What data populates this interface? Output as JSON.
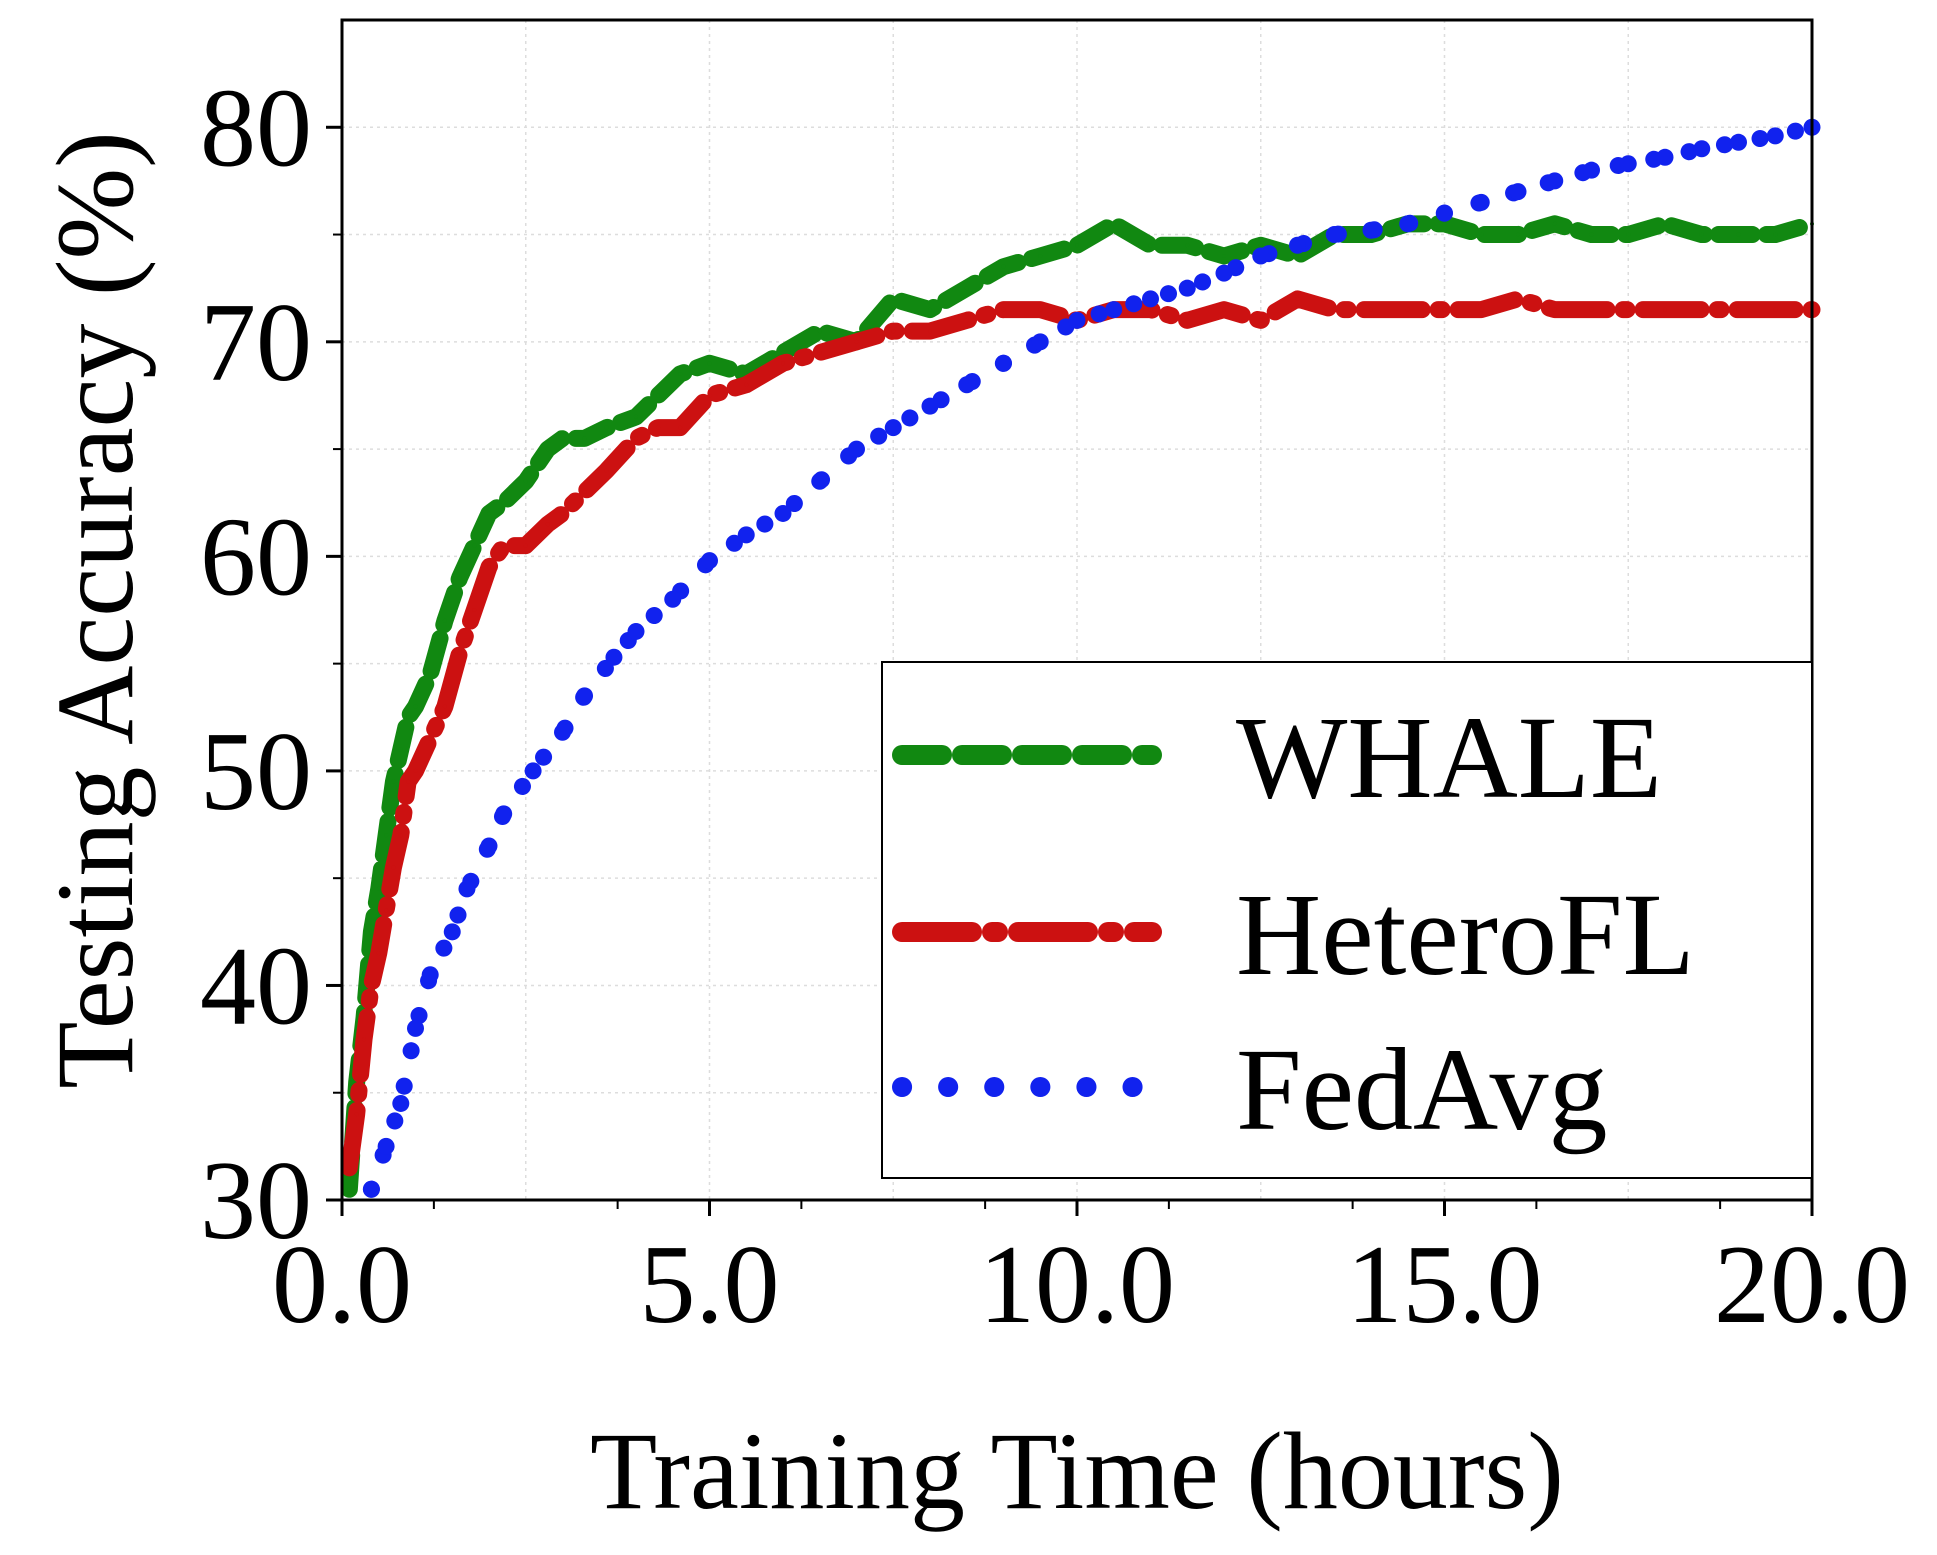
{
  "chart_data": {
    "type": "line",
    "title": "",
    "xlabel": "Training Time (hours)",
    "ylabel": "Testing Accuracy (%)",
    "xlim": [
      0,
      20
    ],
    "ylim": [
      30,
      85
    ],
    "xticks": [
      0,
      5,
      10,
      15,
      20
    ],
    "xtick_labels": [
      "0.0",
      "5.0",
      "10.0",
      "15.0",
      "20.0"
    ],
    "yticks": [
      30,
      40,
      50,
      60,
      70,
      80
    ],
    "ytick_labels": [
      "30",
      "40",
      "50",
      "60",
      "70",
      "80"
    ],
    "grid": true,
    "legend_position": "bottom-right",
    "series": [
      {
        "name": "WHALE",
        "color": "#118811",
        "style": "dashed",
        "x": [
          0.1,
          0.2,
          0.3,
          0.4,
          0.5,
          0.6,
          0.7,
          0.8,
          0.9,
          1.0,
          1.2,
          1.4,
          1.6,
          1.8,
          2.0,
          2.2,
          2.5,
          2.8,
          3.0,
          3.3,
          3.6,
          4.0,
          4.3,
          4.6,
          5.0,
          5.5,
          6.0,
          6.5,
          7.0,
          7.5,
          8.0,
          8.5,
          9.0,
          9.5,
          10.0,
          10.5,
          11.0,
          11.5,
          12.0,
          12.5,
          13.0,
          13.5,
          14.0,
          14.5,
          15.0,
          15.5,
          16.0,
          16.5,
          17.0,
          17.5,
          18.0,
          18.5,
          19.0,
          19.5,
          20.0
        ],
        "y": [
          30.5,
          35.5,
          38.5,
          42.5,
          44.5,
          47.0,
          49.5,
          51.0,
          52.5,
          53.0,
          54.5,
          57.0,
          59.0,
          60.5,
          62.0,
          62.5,
          63.5,
          65.0,
          65.5,
          65.5,
          66.0,
          66.5,
          67.5,
          68.5,
          69.0,
          68.5,
          69.5,
          70.5,
          70.0,
          72.0,
          71.5,
          72.5,
          73.5,
          74.0,
          74.5,
          75.5,
          74.5,
          74.5,
          74.0,
          74.5,
          74.0,
          75.0,
          75.0,
          75.5,
          75.5,
          75.0,
          75.0,
          75.5,
          75.0,
          75.0,
          75.5,
          75.0,
          75.0,
          75.0,
          75.5
        ]
      },
      {
        "name": "HeteroFL",
        "color": "#cc1111",
        "style": "dash-dot",
        "x": [
          0.1,
          0.2,
          0.3,
          0.4,
          0.5,
          0.6,
          0.7,
          0.8,
          0.9,
          1.0,
          1.2,
          1.4,
          1.6,
          1.8,
          2.0,
          2.2,
          2.5,
          2.8,
          3.0,
          3.3,
          3.6,
          4.0,
          4.3,
          4.6,
          5.0,
          5.5,
          6.0,
          6.5,
          7.0,
          7.5,
          8.0,
          8.5,
          9.0,
          9.5,
          10.0,
          10.5,
          11.0,
          11.5,
          12.0,
          12.5,
          13.0,
          13.5,
          14.0,
          14.5,
          15.0,
          15.5,
          16.0,
          16.5,
          17.0,
          17.5,
          18.0,
          18.5,
          19.0,
          19.5,
          20.0
        ],
        "y": [
          31.5,
          34.0,
          37.5,
          40.0,
          41.5,
          43.5,
          45.5,
          47.0,
          49.5,
          50.0,
          51.5,
          53.0,
          55.5,
          57.5,
          59.5,
          60.5,
          60.5,
          61.5,
          62.0,
          63.0,
          64.0,
          65.5,
          66.0,
          66.0,
          67.5,
          68.0,
          69.0,
          69.5,
          70.0,
          70.5,
          70.5,
          71.0,
          71.5,
          71.5,
          71.0,
          71.5,
          71.5,
          71.0,
          71.5,
          71.0,
          72.0,
          71.5,
          71.5,
          71.5,
          71.5,
          71.5,
          72.0,
          71.5,
          71.5,
          71.5,
          71.5,
          71.5,
          71.5,
          71.5,
          71.5
        ]
      },
      {
        "name": "FedAvg",
        "color": "#1122ee",
        "style": "dotted",
        "x": [
          0.4,
          0.6,
          0.8,
          1.0,
          1.2,
          1.5,
          1.7,
          2.0,
          2.2,
          2.6,
          3.0,
          3.3,
          3.7,
          4.0,
          4.5,
          5.0,
          5.5,
          6.0,
          6.5,
          7.0,
          7.5,
          8.0,
          8.5,
          9.0,
          9.5,
          10.0,
          10.5,
          11.0,
          11.5,
          12.0,
          12.5,
          13.0,
          13.5,
          14.0,
          14.5,
          15.0,
          15.5,
          16.0,
          16.5,
          17.0,
          17.5,
          18.0,
          18.5,
          19.0,
          19.5,
          20.0
        ],
        "y": [
          30.5,
          32.5,
          34.5,
          38.0,
          40.5,
          42.5,
          44.5,
          46.5,
          48.0,
          50.0,
          51.8,
          53.5,
          55.3,
          56.5,
          58.0,
          59.8,
          61.0,
          62.0,
          63.5,
          65.0,
          66.0,
          67.0,
          68.0,
          69.0,
          70.0,
          71.0,
          71.5,
          72.0,
          72.5,
          73.2,
          74.0,
          74.5,
          75.0,
          75.2,
          75.5,
          76.0,
          76.5,
          77.0,
          77.5,
          78.0,
          78.3,
          78.6,
          79.0,
          79.3,
          79.6,
          80.0
        ]
      }
    ]
  }
}
